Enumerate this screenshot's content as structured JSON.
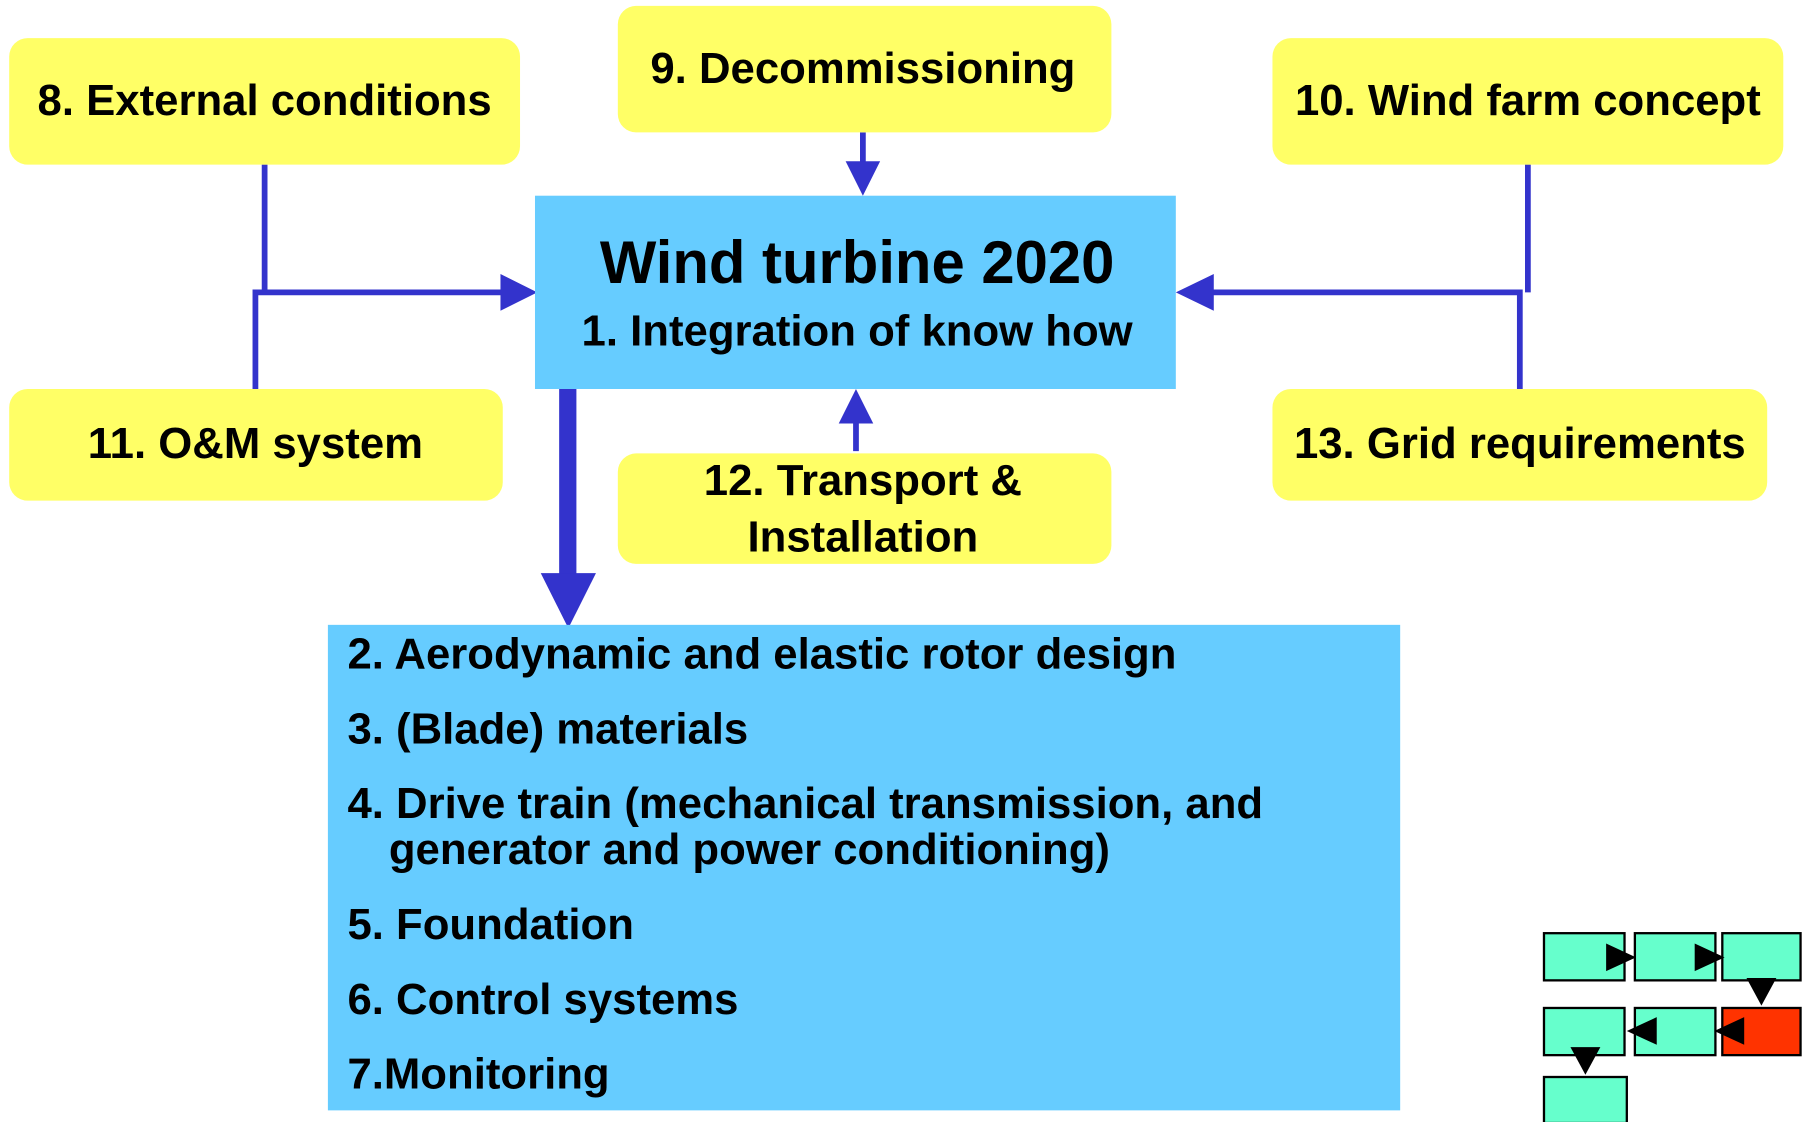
{
  "center": {
    "title": "Wind turbine 2020",
    "subtitle": "1. Integration of know how"
  },
  "nodes": [
    {
      "label": "8. External conditions"
    },
    {
      "label": "9. Decommissioning"
    },
    {
      "label": "10. Wind farm concept"
    },
    {
      "label": "11. O&M system"
    },
    {
      "lines": [
        "12. Transport &",
        "Installation"
      ]
    },
    {
      "label": "13. Grid requirements"
    }
  ],
  "components": [
    "2. Aerodynamic and elastic rotor design",
    "3. (Blade) materials",
    [
      "4. Drive train (mechanical transmission, and",
      "generator and power conditioning)"
    ],
    "5. Foundation",
    "6. Control systems",
    "7.Monitoring"
  ]
}
